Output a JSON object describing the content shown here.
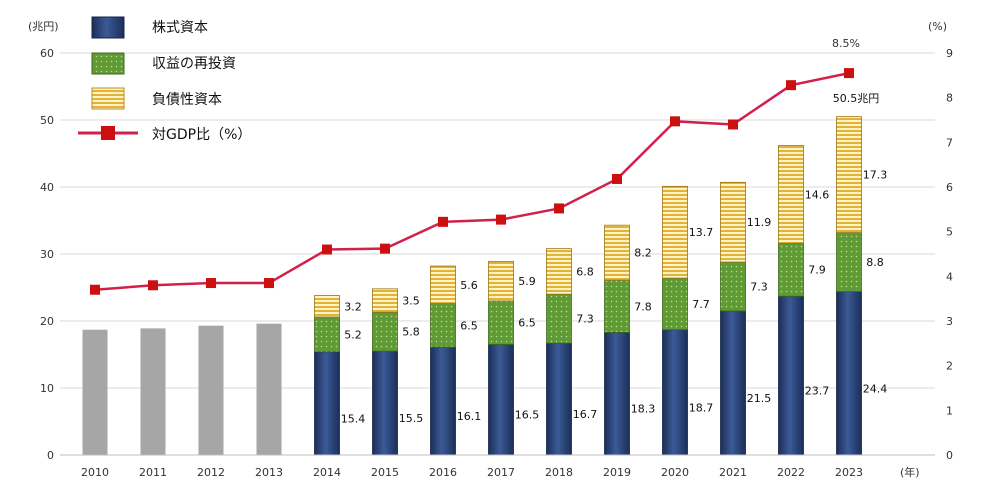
{
  "chart_data": {
    "type": "bar",
    "categories": [
      "2010",
      "2011",
      "2012",
      "2013",
      "2014",
      "2015",
      "2016",
      "2017",
      "2018",
      "2019",
      "2020",
      "2021",
      "2022",
      "2023"
    ],
    "series": [
      {
        "name": "株式資本",
        "values": [
          null,
          null,
          null,
          null,
          15.4,
          15.5,
          16.1,
          16.5,
          16.7,
          18.3,
          18.7,
          21.5,
          23.7,
          24.4
        ]
      },
      {
        "name": "収益の再投資",
        "values": [
          null,
          null,
          null,
          null,
          5.2,
          5.8,
          6.5,
          6.5,
          7.3,
          7.8,
          7.7,
          7.3,
          7.9,
          8.8
        ]
      },
      {
        "name": "負債性資本",
        "values": [
          null,
          null,
          null,
          null,
          3.2,
          3.5,
          5.6,
          5.9,
          6.8,
          8.2,
          13.7,
          11.9,
          14.6,
          17.3
        ]
      }
    ],
    "total_only": [
      18.7,
      18.9,
      19.3,
      19.6,
      null,
      null,
      null,
      null,
      null,
      null,
      null,
      null,
      null,
      null
    ],
    "line_series": {
      "name": "対GDP比（%）",
      "values": [
        3.7,
        3.8,
        3.85,
        3.85,
        4.6,
        4.62,
        5.22,
        5.27,
        5.52,
        6.18,
        7.47,
        7.4,
        8.28,
        8.55
      ]
    },
    "annotations": {
      "gdp_2023": "8.5%",
      "total_2023": "50.5兆円"
    },
    "ylabel_left": "(兆円)",
    "ylabel_right": "(%)",
    "xlabel": "(年)",
    "ylim_left": [
      0,
      60
    ],
    "ylim_right": [
      0,
      9
    ],
    "yticks_left": [
      "0",
      "10",
      "20",
      "30",
      "40",
      "50",
      "60"
    ],
    "yticks_right": [
      "0",
      "1",
      "2",
      "3",
      "4",
      "5",
      "6",
      "7",
      "8",
      "9"
    ],
    "grid": true,
    "legend_position": "top-left",
    "colors": {
      "equity": "#2a4373",
      "reinvest": "#6aa33c",
      "debt": "#f0d46a",
      "gray": "#a6a6a6",
      "line": "#d0214d",
      "marker": "#cc1010"
    }
  }
}
